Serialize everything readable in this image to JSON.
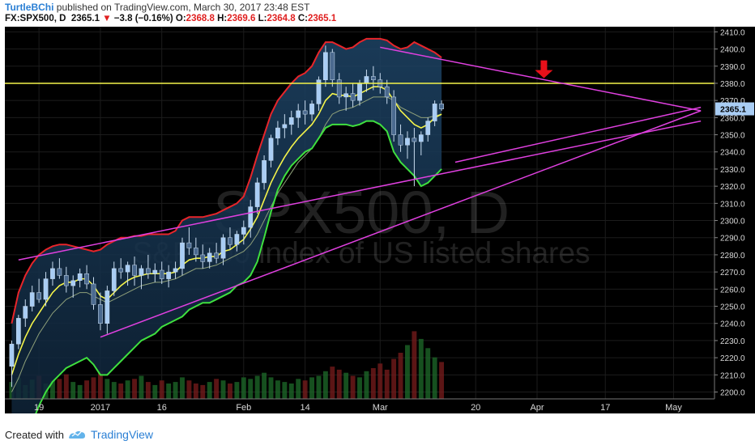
{
  "header": {
    "username": "TurtleBChi",
    "published_text": "published on TradingView.com, March 30, 2017 23:48 EST",
    "symbol": "FX:SPX500, D",
    "last": "2365.1",
    "change": "−3.8 (−0.16%)",
    "open_label": "O:",
    "open": "2368.8",
    "high_label": "H:",
    "high": "2369.6",
    "low_label": "L:",
    "low": "2364.8",
    "close_label": "C:",
    "close": "2365.1"
  },
  "footer": {
    "created_label": "Created with",
    "brand": "TradingView"
  },
  "watermark": {
    "symbol": "SPX500, D",
    "description": "S&P 500 index of US listed shares"
  },
  "colors": {
    "background": "#000000",
    "bull_candle": "#a9cdf4",
    "bear_candle": "#4b6a8f",
    "upper_band": "#e8252a",
    "lower_band": "#3fe03f",
    "ema_fast": "#f4f44a",
    "trendlines": "#e040e0",
    "resistance": "#f4f44a",
    "arrow": "#e8101a",
    "price_tag": "#a9cdf4"
  },
  "chart_data": {
    "type": "candlestick",
    "symbol": "FX:SPX500",
    "interval": "D",
    "y_range": [
      2196,
      2413
    ],
    "y_ticks": [
      2200.0,
      2210.0,
      2220.0,
      2230.0,
      2240.0,
      2250.0,
      2260.0,
      2270.0,
      2280.0,
      2290.0,
      2300.0,
      2310.0,
      2320.0,
      2330.0,
      2340.0,
      2350.0,
      2360.0,
      2370.0,
      2380.0,
      2390.0,
      2400.0,
      2410.0
    ],
    "x_labels": [
      {
        "label": "19",
        "index": 4
      },
      {
        "label": "2017",
        "index": 13
      },
      {
        "label": "16",
        "index": 22
      },
      {
        "label": "Feb",
        "index": 34
      },
      {
        "label": "14",
        "index": 43
      },
      {
        "label": "Mar",
        "index": 54
      },
      {
        "label": "20",
        "index": 68
      },
      {
        "label": "Apr",
        "index": 77
      },
      {
        "label": "17",
        "index": 87
      },
      {
        "label": "May",
        "index": 97
      }
    ],
    "x_index_range": [
      -1,
      103
    ],
    "last_price_tag": "2365.1",
    "candles": [
      [
        2215,
        2230,
        2203,
        2228
      ],
      [
        2228,
        2245,
        2225,
        2243
      ],
      [
        2243,
        2254,
        2238,
        2250
      ],
      [
        2250,
        2262,
        2247,
        2258
      ],
      [
        2258,
        2266,
        2252,
        2254
      ],
      [
        2254,
        2270,
        2250,
        2266
      ],
      [
        2266,
        2276,
        2262,
        2272
      ],
      [
        2272,
        2278,
        2266,
        2268
      ],
      [
        2268,
        2273,
        2258,
        2262
      ],
      [
        2262,
        2268,
        2255,
        2265
      ],
      [
        2265,
        2272,
        2261,
        2269
      ],
      [
        2269,
        2274,
        2260,
        2263
      ],
      [
        2263,
        2267,
        2248,
        2251
      ],
      [
        2251,
        2258,
        2236,
        2240
      ],
      [
        2240,
        2262,
        2234,
        2259
      ],
      [
        2259,
        2276,
        2256,
        2272
      ],
      [
        2272,
        2278,
        2266,
        2270
      ],
      [
        2270,
        2276,
        2262,
        2274
      ],
      [
        2274,
        2279,
        2262,
        2268
      ],
      [
        2268,
        2274,
        2260,
        2272
      ],
      [
        2272,
        2280,
        2266,
        2269
      ],
      [
        2269,
        2275,
        2264,
        2271
      ],
      [
        2271,
        2276,
        2263,
        2266
      ],
      [
        2266,
        2274,
        2261,
        2270
      ],
      [
        2270,
        2276,
        2266,
        2272
      ],
      [
        2272,
        2290,
        2268,
        2287
      ],
      [
        2287,
        2296,
        2280,
        2284
      ],
      [
        2284,
        2290,
        2276,
        2280
      ],
      [
        2280,
        2286,
        2272,
        2276
      ],
      [
        2276,
        2284,
        2272,
        2281
      ],
      [
        2281,
        2287,
        2275,
        2278
      ],
      [
        2278,
        2292,
        2274,
        2290
      ],
      [
        2290,
        2296,
        2283,
        2286
      ],
      [
        2286,
        2294,
        2282,
        2292
      ],
      [
        2292,
        2300,
        2286,
        2296
      ],
      [
        2296,
        2312,
        2290,
        2308
      ],
      [
        2308,
        2325,
        2304,
        2322
      ],
      [
        2322,
        2338,
        2318,
        2335
      ],
      [
        2335,
        2350,
        2331,
        2348
      ],
      [
        2348,
        2358,
        2344,
        2354
      ],
      [
        2354,
        2362,
        2348,
        2356
      ],
      [
        2356,
        2364,
        2350,
        2360
      ],
      [
        2360,
        2368,
        2354,
        2364
      ],
      [
        2364,
        2370,
        2356,
        2362
      ],
      [
        2362,
        2370,
        2358,
        2368
      ],
      [
        2368,
        2384,
        2364,
        2382
      ],
      [
        2382,
        2402,
        2378,
        2398
      ],
      [
        2398,
        2400,
        2378,
        2382
      ],
      [
        2382,
        2386,
        2368,
        2372
      ],
      [
        2372,
        2378,
        2364,
        2374
      ],
      [
        2374,
        2380,
        2366,
        2370
      ],
      [
        2370,
        2382,
        2367,
        2380
      ],
      [
        2380,
        2388,
        2375,
        2384
      ],
      [
        2384,
        2390,
        2376,
        2382
      ],
      [
        2382,
        2386,
        2374,
        2378
      ],
      [
        2378,
        2382,
        2368,
        2372
      ],
      [
        2372,
        2376,
        2346,
        2350
      ],
      [
        2350,
        2356,
        2340,
        2344
      ],
      [
        2344,
        2352,
        2336,
        2348
      ],
      [
        2348,
        2354,
        2320,
        2346
      ],
      [
        2346,
        2352,
        2338,
        2350
      ],
      [
        2350,
        2360,
        2346,
        2358
      ],
      [
        2358,
        2370,
        2355,
        2368
      ],
      [
        2368,
        2370,
        2364,
        2365
      ]
    ],
    "candle_start_index": 0,
    "volume": [
      22,
      28,
      18,
      25,
      30,
      20,
      24,
      26,
      32,
      22,
      18,
      24,
      28,
      36,
      26,
      22,
      20,
      24,
      26,
      30,
      22,
      18,
      24,
      20,
      22,
      28,
      24,
      20,
      18,
      22,
      26,
      24,
      20,
      22,
      28,
      26,
      30,
      34,
      28,
      24,
      22,
      20,
      26,
      24,
      28,
      30,
      36,
      42,
      38,
      34,
      30,
      28,
      36,
      40,
      46,
      38,
      52,
      60,
      70,
      88,
      78,
      66,
      54,
      48
    ],
    "upper_band": [
      2240,
      2258,
      2268,
      2275,
      2280,
      2283,
      2285,
      2286,
      2286,
      2285,
      2284,
      2283,
      2282,
      2283,
      2286,
      2288,
      2290,
      2290,
      2291,
      2291,
      2292,
      2292,
      2292,
      2292,
      2294,
      2300,
      2302,
      2302,
      2302,
      2303,
      2304,
      2306,
      2308,
      2310,
      2314,
      2325,
      2338,
      2350,
      2362,
      2370,
      2375,
      2380,
      2384,
      2386,
      2390,
      2398,
      2404,
      2404,
      2402,
      2400,
      2401,
      2404,
      2406,
      2406,
      2406,
      2405,
      2402,
      2400,
      2401,
      2404,
      2402,
      2400,
      2398,
      2395
    ],
    "lower_band": [
      2160,
      2165,
      2172,
      2182,
      2192,
      2200,
      2206,
      2210,
      2214,
      2216,
      2218,
      2220,
      2216,
      2210,
      2210,
      2214,
      2218,
      2222,
      2226,
      2230,
      2232,
      2234,
      2238,
      2240,
      2242,
      2244,
      2248,
      2250,
      2252,
      2252,
      2254,
      2256,
      2258,
      2262,
      2264,
      2268,
      2276,
      2290,
      2305,
      2318,
      2326,
      2332,
      2336,
      2340,
      2342,
      2348,
      2354,
      2356,
      2356,
      2356,
      2355,
      2356,
      2358,
      2358,
      2356,
      2352,
      2340,
      2334,
      2330,
      2326,
      2320,
      2322,
      2326,
      2330
    ],
    "ema_fast": [
      2210,
      2222,
      2232,
      2240,
      2246,
      2252,
      2258,
      2262,
      2264,
      2264,
      2266,
      2266,
      2262,
      2256,
      2254,
      2258,
      2262,
      2265,
      2267,
      2268,
      2269,
      2269,
      2269,
      2269,
      2270,
      2274,
      2277,
      2278,
      2278,
      2279,
      2279,
      2282,
      2283,
      2286,
      2289,
      2295,
      2302,
      2312,
      2322,
      2330,
      2337,
      2343,
      2348,
      2352,
      2356,
      2362,
      2370,
      2374,
      2373,
      2373,
      2372,
      2374,
      2376,
      2378,
      2378,
      2376,
      2370,
      2364,
      2360,
      2356,
      2354,
      2356,
      2360,
      2362
    ],
    "sma_mid": [
      2200,
      2208,
      2218,
      2226,
      2234,
      2240,
      2246,
      2250,
      2254,
      2256,
      2258,
      2258,
      2256,
      2254,
      2252,
      2254,
      2256,
      2258,
      2260,
      2262,
      2263,
      2264,
      2264,
      2265,
      2266,
      2268,
      2270,
      2272,
      2272,
      2273,
      2274,
      2276,
      2278,
      2280,
      2282,
      2286,
      2292,
      2300,
      2308,
      2316,
      2322,
      2328,
      2334,
      2338,
      2342,
      2348,
      2356,
      2362,
      2364,
      2365,
      2366,
      2368,
      2370,
      2372,
      2372,
      2372,
      2370,
      2366,
      2364,
      2362,
      2360,
      2360,
      2361,
      2362
    ],
    "resistance_level": 2380,
    "trendlines": [
      {
        "from": [
          1,
          2277
        ],
        "to": [
          101,
          2358
        ]
      },
      {
        "from": [
          13,
          2232
        ],
        "to": [
          101,
          2364
        ]
      },
      {
        "from": [
          54,
          2401
        ],
        "to": [
          101,
          2364
        ]
      },
      {
        "from": [
          65,
          2334
        ],
        "to": [
          101,
          2366
        ]
      }
    ],
    "arrow_at": {
      "index": 78,
      "price": 2383
    }
  }
}
